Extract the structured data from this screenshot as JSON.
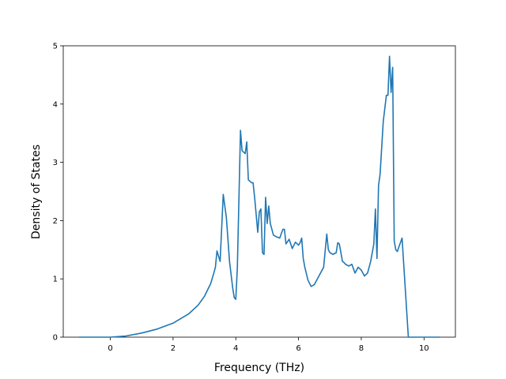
{
  "chart_data": {
    "type": "line",
    "title": "",
    "xlabel": "Frequency (THz)",
    "ylabel": "Density of States",
    "xlim": [
      -1.5,
      11.0
    ],
    "ylim": [
      0,
      5.0
    ],
    "xticks": [
      0,
      2,
      4,
      6,
      8,
      10
    ],
    "yticks": [
      0,
      1,
      2,
      3,
      4,
      5
    ],
    "grid": false,
    "legend": "none",
    "series": [
      {
        "color": "#1f77b4",
        "x": [
          -1.0,
          0.0,
          0.5,
          1.0,
          1.5,
          2.0,
          2.5,
          2.8,
          3.0,
          3.2,
          3.3,
          3.35,
          3.4,
          3.5,
          3.6,
          3.7,
          3.8,
          3.9,
          3.95,
          4.0,
          4.05,
          4.15,
          4.2,
          4.3,
          4.35,
          4.4,
          4.5,
          4.55,
          4.6,
          4.7,
          4.75,
          4.8,
          4.85,
          4.9,
          4.95,
          5.0,
          5.05,
          5.1,
          5.2,
          5.3,
          5.4,
          5.5,
          5.55,
          5.6,
          5.7,
          5.8,
          5.9,
          6.0,
          6.05,
          6.1,
          6.15,
          6.2,
          6.3,
          6.4,
          6.5,
          6.6,
          6.8,
          6.9,
          6.95,
          7.0,
          7.1,
          7.2,
          7.25,
          7.3,
          7.4,
          7.45,
          7.5,
          7.6,
          7.7,
          7.8,
          7.85,
          7.9,
          8.0,
          8.1,
          8.2,
          8.3,
          8.4,
          8.45,
          8.5,
          8.55,
          8.6,
          8.7,
          8.8,
          8.85,
          8.9,
          8.95,
          9.0,
          9.05,
          9.1,
          9.15,
          9.2,
          9.3,
          9.4,
          9.5,
          9.55,
          9.6,
          10.0,
          10.5
        ],
        "y": [
          0,
          0,
          0.02,
          0.07,
          0.14,
          0.24,
          0.4,
          0.55,
          0.7,
          0.92,
          1.1,
          1.2,
          1.48,
          1.3,
          2.45,
          2.05,
          1.3,
          0.85,
          0.68,
          0.65,
          1.2,
          3.55,
          3.2,
          3.15,
          3.35,
          2.7,
          2.65,
          2.65,
          2.4,
          1.8,
          2.15,
          2.2,
          1.45,
          1.42,
          2.4,
          1.95,
          2.25,
          1.95,
          1.75,
          1.72,
          1.7,
          1.85,
          1.85,
          1.6,
          1.68,
          1.52,
          1.63,
          1.58,
          1.62,
          1.7,
          1.35,
          1.2,
          0.98,
          0.87,
          0.9,
          1.0,
          1.2,
          1.77,
          1.5,
          1.45,
          1.42,
          1.45,
          1.62,
          1.6,
          1.3,
          1.28,
          1.25,
          1.22,
          1.25,
          1.1,
          1.15,
          1.2,
          1.15,
          1.05,
          1.1,
          1.3,
          1.6,
          2.2,
          1.35,
          2.6,
          2.8,
          3.7,
          4.15,
          4.15,
          4.82,
          4.2,
          4.63,
          1.65,
          1.5,
          1.47,
          1.55,
          1.7,
          0.85,
          0.0,
          0,
          0,
          0,
          0
        ]
      }
    ]
  }
}
